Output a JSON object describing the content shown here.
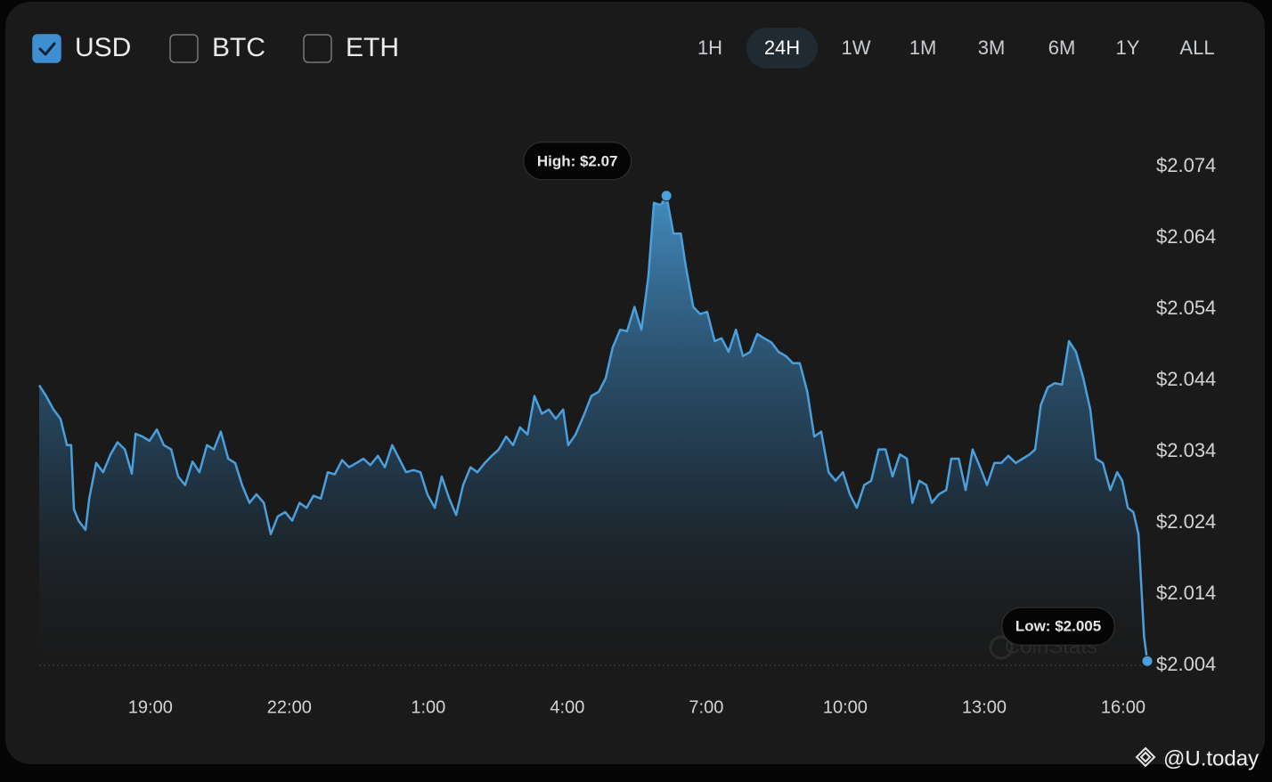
{
  "currencies": [
    {
      "label": "USD",
      "checked": true
    },
    {
      "label": "BTC",
      "checked": false
    },
    {
      "label": "ETH",
      "checked": false
    }
  ],
  "ranges": [
    {
      "label": "1H"
    },
    {
      "label": "24H",
      "selected": true
    },
    {
      "label": "1W"
    },
    {
      "label": "1M"
    },
    {
      "label": "3M"
    },
    {
      "label": "6M"
    },
    {
      "label": "1Y"
    },
    {
      "label": "ALL"
    }
  ],
  "watermark": "CoinStats",
  "credit": "@U.today",
  "chart_data": {
    "type": "area",
    "color": "#4a9fdc",
    "xlim": [
      16.6,
      40.52
    ],
    "ylim": [
      2.0,
      2.08
    ],
    "xticks": [
      {
        "value": 19,
        "label": "19:00"
      },
      {
        "value": 22,
        "label": "22:00"
      },
      {
        "value": 25,
        "label": "1:00"
      },
      {
        "value": 28,
        "label": "4:00"
      },
      {
        "value": 31,
        "label": "7:00"
      },
      {
        "value": 34,
        "label": "10:00"
      },
      {
        "value": 37,
        "label": "13:00"
      },
      {
        "value": 40,
        "label": "16:00"
      }
    ],
    "yticks": [
      {
        "value": 2.004,
        "label": "$2.004"
      },
      {
        "value": 2.014,
        "label": "$2.014"
      },
      {
        "value": 2.024,
        "label": "$2.024"
      },
      {
        "value": 2.034,
        "label": "$2.034"
      },
      {
        "value": 2.044,
        "label": "$2.044"
      },
      {
        "value": 2.054,
        "label": "$2.054"
      },
      {
        "value": 2.064,
        "label": "$2.064"
      },
      {
        "value": 2.074,
        "label": "$2.074"
      }
    ],
    "annotations": [
      {
        "label": "High: $2.07",
        "anchor": "max"
      },
      {
        "label": "Low: $2.005",
        "anchor": "min"
      }
    ],
    "x": [
      16.6,
      16.75,
      16.91,
      17.06,
      17.2,
      17.29,
      17.35,
      17.45,
      17.6,
      17.68,
      17.83,
      17.98,
      18.14,
      18.29,
      18.45,
      18.6,
      18.68,
      18.83,
      18.98,
      19.14,
      19.29,
      19.45,
      19.6,
      19.75,
      19.91,
      20.06,
      20.22,
      20.37,
      20.52,
      20.68,
      20.83,
      20.98,
      21.14,
      21.29,
      21.45,
      21.6,
      21.75,
      21.91,
      22.06,
      22.22,
      22.37,
      22.52,
      22.68,
      22.83,
      22.98,
      23.14,
      23.29,
      23.45,
      23.6,
      23.75,
      23.91,
      24.06,
      24.22,
      24.37,
      24.52,
      24.68,
      24.83,
      24.98,
      25.14,
      25.29,
      25.45,
      25.6,
      25.75,
      25.91,
      26.06,
      26.22,
      26.37,
      26.52,
      26.68,
      26.83,
      26.98,
      27.14,
      27.29,
      27.45,
      27.6,
      27.75,
      27.91,
      28.02,
      28.18,
      28.37,
      28.52,
      28.68,
      28.83,
      28.98,
      29.14,
      29.29,
      29.45,
      29.6,
      29.75,
      29.87,
      30.02,
      30.14,
      30.29,
      30.45,
      30.56,
      30.72,
      30.87,
      31.02,
      31.18,
      31.33,
      31.48,
      31.64,
      31.79,
      31.95,
      32.1,
      32.25,
      32.41,
      32.56,
      32.72,
      32.87,
      33.02,
      33.18,
      33.33,
      33.48,
      33.64,
      33.79,
      33.95,
      34.1,
      34.25,
      34.41,
      34.56,
      34.72,
      34.87,
      35.02,
      35.18,
      35.33,
      35.45,
      35.6,
      35.75,
      35.87,
      36.02,
      36.18,
      36.29,
      36.45,
      36.6,
      36.75,
      36.91,
      37.06,
      37.22,
      37.37,
      37.52,
      37.68,
      37.83,
      37.98,
      38.1,
      38.22,
      38.37,
      38.52,
      38.68,
      38.83,
      38.98,
      39.14,
      39.29,
      39.41,
      39.56,
      39.72,
      39.87,
      39.98,
      40.1,
      40.22,
      40.33,
      40.45,
      40.52
    ],
    "values": [
      2.0433,
      2.0418,
      2.0399,
      2.0386,
      2.0349,
      2.0349,
      2.0259,
      2.0243,
      2.023,
      2.0274,
      2.0324,
      2.0311,
      2.0336,
      2.0353,
      2.0343,
      2.0309,
      2.0365,
      2.0361,
      2.0355,
      2.0371,
      2.0349,
      2.0343,
      2.0305,
      2.0293,
      2.0326,
      2.0311,
      2.0349,
      2.0343,
      2.0368,
      2.033,
      2.0324,
      2.0293,
      2.0268,
      2.028,
      2.0268,
      2.0224,
      2.0249,
      2.0255,
      2.0243,
      2.0268,
      2.0261,
      2.0278,
      2.0274,
      2.0311,
      2.0308,
      2.0328,
      2.0318,
      2.0324,
      2.033,
      2.0321,
      2.0334,
      2.0318,
      2.0349,
      2.033,
      2.0311,
      2.0314,
      2.0311,
      2.028,
      2.0261,
      2.0305,
      2.0274,
      2.0251,
      2.0293,
      2.0318,
      2.0311,
      2.0324,
      2.0334,
      2.0343,
      2.0361,
      2.0349,
      2.0374,
      2.0364,
      2.0418,
      2.0393,
      2.0399,
      2.0386,
      2.0399,
      2.0349,
      2.0364,
      2.0393,
      2.0418,
      2.0424,
      2.0443,
      2.0486,
      2.0511,
      2.0509,
      2.0543,
      2.0511,
      2.0586,
      2.0689,
      2.0686,
      2.0699,
      2.0646,
      2.0646,
      2.0599,
      2.0543,
      2.0533,
      2.0536,
      2.0495,
      2.0499,
      2.048,
      2.0511,
      2.0474,
      2.048,
      2.0505,
      2.0499,
      2.0493,
      2.048,
      2.0474,
      2.0464,
      2.0464,
      2.0424,
      2.0361,
      2.0368,
      2.0311,
      2.0299,
      2.0311,
      2.028,
      2.0261,
      2.0293,
      2.0299,
      2.0343,
      2.0343,
      2.0305,
      2.0336,
      2.033,
      2.0268,
      2.0299,
      2.0293,
      2.0268,
      2.028,
      2.0286,
      2.033,
      2.033,
      2.0286,
      2.0343,
      2.0318,
      2.0293,
      2.0324,
      2.0324,
      2.0334,
      2.0324,
      2.033,
      2.0336,
      2.0343,
      2.0405,
      2.043,
      2.0436,
      2.0434,
      2.0495,
      2.048,
      2.0443,
      2.0399,
      2.033,
      2.0324,
      2.0286,
      2.0311,
      2.0299,
      2.0261,
      2.0255,
      2.0224,
      2.008,
      2.0046
    ]
  }
}
